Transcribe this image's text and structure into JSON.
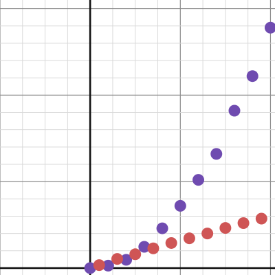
{
  "chart_data": {
    "type": "scatter",
    "title": "",
    "xlabel": "",
    "ylabel": "",
    "xlim": [
      -2,
      4.1
    ],
    "ylim": [
      -0.4,
      15.5
    ],
    "grid": true,
    "tick_labels_visible": false,
    "series": [
      {
        "color": "#6f4bb0",
        "points": [
          [
            0,
            0
          ],
          [
            0.4,
            0.14
          ],
          [
            0.8,
            0.48
          ],
          [
            1.2,
            1.23
          ],
          [
            1.6,
            2.3
          ],
          [
            2.0,
            3.6
          ],
          [
            2.4,
            5.1
          ],
          [
            2.8,
            6.6
          ],
          [
            3.2,
            9.1
          ],
          [
            3.6,
            11.1
          ],
          [
            4.0,
            13.9
          ]
        ]
      },
      {
        "color": "#cf5555",
        "points": [
          [
            0.2,
            0.17
          ],
          [
            0.6,
            0.53
          ],
          [
            1.0,
            0.8
          ],
          [
            1.4,
            1.14
          ],
          [
            1.8,
            1.45
          ],
          [
            2.2,
            1.72
          ],
          [
            2.6,
            2.0
          ],
          [
            3.0,
            2.32
          ],
          [
            3.4,
            2.6
          ],
          [
            3.8,
            2.86
          ]
        ]
      }
    ]
  }
}
